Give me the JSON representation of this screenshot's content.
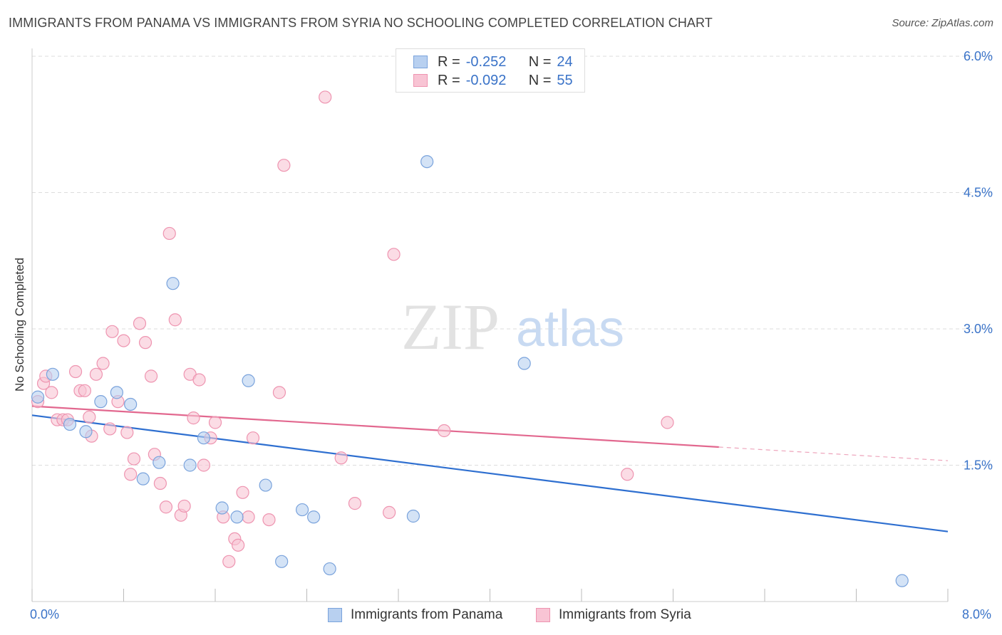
{
  "title": "IMMIGRANTS FROM PANAMA VS IMMIGRANTS FROM SYRIA NO SCHOOLING COMPLETED CORRELATION CHART",
  "source": "Source: ZipAtlas.com",
  "watermark": {
    "zip": "ZIP",
    "atlas": "atlas"
  },
  "legend": {
    "r_label": "R =",
    "n_label": "N =",
    "rows": [
      {
        "r": "-0.252",
        "n": "24"
      },
      {
        "r": "-0.092",
        "n": "55"
      }
    ]
  },
  "colors": {
    "panama_fill": "#b8d0f0",
    "panama_stroke": "#7aa3dc",
    "panama_line": "#2e6fd0",
    "syria_fill": "#f8c4d4",
    "syria_stroke": "#ee94b0",
    "syria_line": "#e2688f",
    "axis_text": "#3a73c8",
    "grid": "#dddddd"
  },
  "chart_data": {
    "type": "scatter",
    "title": "IMMIGRANTS FROM PANAMA VS IMMIGRANTS FROM SYRIA NO SCHOOLING COMPLETED CORRELATION CHART",
    "xlabel": "",
    "ylabel": "No Schooling Completed",
    "xlim": [
      0.0,
      8.0
    ],
    "ylim": [
      0.0,
      6.0
    ],
    "x_tick_labels": [
      "0.0%",
      "8.0%"
    ],
    "y_ticks": [
      1.5,
      3.0,
      4.5,
      6.0
    ],
    "y_tick_labels": [
      "1.5%",
      "3.0%",
      "4.5%",
      "6.0%"
    ],
    "legend_position": "top-center",
    "series": [
      {
        "name": "Immigrants from Panama",
        "r": -0.252,
        "n": 24,
        "trend": {
          "x": [
            0.0,
            8.0
          ],
          "y": [
            2.05,
            0.77
          ]
        },
        "points": [
          [
            0.05,
            2.25
          ],
          [
            0.18,
            2.5
          ],
          [
            0.33,
            1.95
          ],
          [
            0.47,
            1.87
          ],
          [
            0.6,
            2.2
          ],
          [
            0.74,
            2.3
          ],
          [
            0.86,
            2.17
          ],
          [
            0.97,
            1.35
          ],
          [
            1.11,
            1.53
          ],
          [
            1.23,
            3.5
          ],
          [
            1.38,
            1.5
          ],
          [
            1.5,
            1.8
          ],
          [
            1.66,
            1.03
          ],
          [
            1.79,
            0.93
          ],
          [
            1.89,
            2.43
          ],
          [
            2.04,
            1.28
          ],
          [
            2.18,
            0.44
          ],
          [
            2.36,
            1.01
          ],
          [
            2.46,
            0.93
          ],
          [
            2.6,
            0.36
          ],
          [
            3.33,
            0.94
          ],
          [
            3.45,
            4.84
          ],
          [
            4.3,
            2.62
          ],
          [
            7.6,
            0.23
          ]
        ]
      },
      {
        "name": "Immigrants from Syria",
        "r": -0.092,
        "n": 55,
        "trend": {
          "x": [
            0.0,
            6.0
          ],
          "y": [
            2.15,
            1.7
          ]
        },
        "trend_dashed": {
          "x": [
            6.0,
            8.0
          ],
          "y": [
            1.7,
            1.55
          ]
        },
        "points": [
          [
            0.05,
            2.2
          ],
          [
            0.1,
            2.4
          ],
          [
            0.12,
            2.48
          ],
          [
            0.17,
            2.3
          ],
          [
            0.22,
            2.0
          ],
          [
            0.27,
            2.0
          ],
          [
            0.31,
            2.0
          ],
          [
            0.38,
            2.53
          ],
          [
            0.42,
            2.32
          ],
          [
            0.46,
            2.32
          ],
          [
            0.5,
            2.03
          ],
          [
            0.52,
            1.82
          ],
          [
            0.56,
            2.5
          ],
          [
            0.62,
            2.62
          ],
          [
            0.68,
            1.9
          ],
          [
            0.7,
            2.97
          ],
          [
            0.75,
            2.2
          ],
          [
            0.8,
            2.87
          ],
          [
            0.83,
            1.86
          ],
          [
            0.86,
            1.4
          ],
          [
            0.89,
            1.57
          ],
          [
            0.94,
            3.06
          ],
          [
            0.99,
            2.85
          ],
          [
            1.04,
            2.48
          ],
          [
            1.07,
            1.62
          ],
          [
            1.12,
            1.3
          ],
          [
            1.17,
            1.04
          ],
          [
            1.2,
            4.05
          ],
          [
            1.25,
            3.1
          ],
          [
            1.3,
            0.95
          ],
          [
            1.33,
            1.05
          ],
          [
            1.38,
            2.5
          ],
          [
            1.41,
            2.02
          ],
          [
            1.46,
            2.44
          ],
          [
            1.5,
            1.5
          ],
          [
            1.56,
            1.8
          ],
          [
            1.6,
            1.97
          ],
          [
            1.67,
            0.93
          ],
          [
            1.72,
            0.44
          ],
          [
            1.77,
            0.69
          ],
          [
            1.8,
            0.62
          ],
          [
            1.84,
            1.2
          ],
          [
            1.89,
            0.93
          ],
          [
            1.93,
            1.8
          ],
          [
            2.07,
            0.9
          ],
          [
            2.16,
            2.3
          ],
          [
            2.2,
            4.8
          ],
          [
            2.56,
            5.55
          ],
          [
            2.7,
            1.58
          ],
          [
            2.82,
            1.08
          ],
          [
            3.12,
            0.98
          ],
          [
            3.16,
            3.82
          ],
          [
            3.6,
            1.88
          ],
          [
            5.2,
            1.4
          ],
          [
            5.55,
            1.97
          ]
        ]
      }
    ]
  },
  "bottom_legend": [
    "Immigrants from Panama",
    "Immigrants from Syria"
  ]
}
